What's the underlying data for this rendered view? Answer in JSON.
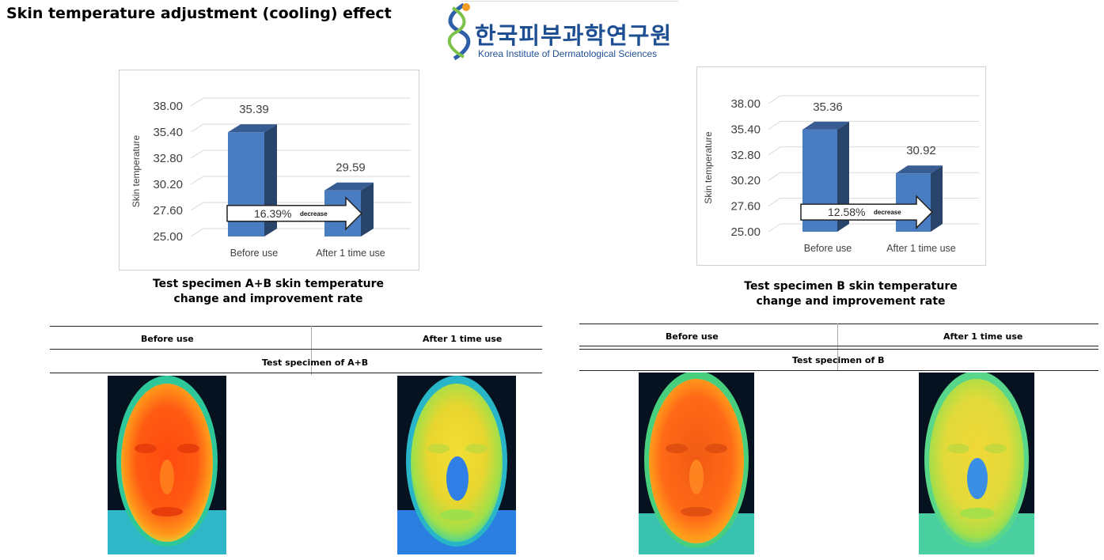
{
  "page": {
    "title": "Skin temperature adjustment (cooling) effect"
  },
  "logo": {
    "korean": "한국피부과학연구원",
    "english": "Korea Institute of Dermatological Sciences"
  },
  "chart_data": [
    {
      "type": "bar",
      "categories": [
        "Before use",
        "After 1 time use"
      ],
      "values": [
        35.39,
        29.59
      ],
      "value_labels": [
        "35.39",
        "29.59"
      ],
      "ylabel": "Skin temperature",
      "yticks": [
        "38.00",
        "35.40",
        "32.80",
        "30.20",
        "27.60",
        "25.00"
      ],
      "ylim": [
        25.0,
        38.0
      ],
      "bar_color": "#4a7cc2",
      "annotation": {
        "percent": "16.39%",
        "word": "decrease"
      },
      "caption": [
        "Test specimen A+B skin temperature",
        "change and improvement rate"
      ]
    },
    {
      "type": "bar",
      "categories": [
        "Before use",
        "After 1 time use"
      ],
      "values": [
        35.36,
        30.92
      ],
      "value_labels": [
        "35.36",
        "30.92"
      ],
      "ylabel": "Skin temperature",
      "yticks": [
        "38.00",
        "35.40",
        "32.80",
        "30.20",
        "27.60",
        "25.00"
      ],
      "ylim": [
        25.0,
        38.0
      ],
      "bar_color": "#4a7cc2",
      "annotation": {
        "percent": "12.58%",
        "word": "decrease"
      },
      "caption": [
        "Test specimen B skin temperature",
        "change and improvement rate"
      ]
    }
  ],
  "tables": [
    {
      "before_label": "Before use",
      "after_label": "After 1 time use",
      "specimen_label": "Test specimen of A+B"
    },
    {
      "before_label": "Before use",
      "after_label": "After 1 time use",
      "specimen_label": "Test specimen of B"
    }
  ]
}
